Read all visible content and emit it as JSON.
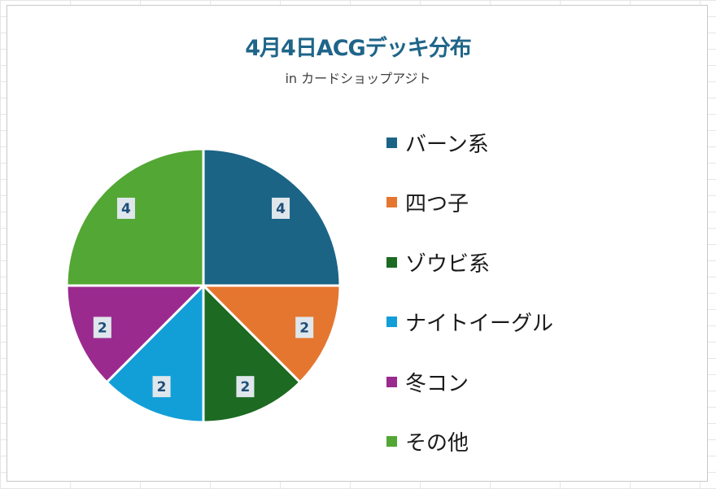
{
  "chart_data": {
    "type": "pie",
    "title": "4月4日ACGデッキ分布",
    "subtitle": "in カードショップアジト",
    "categories": [
      "バーン系",
      "四つ子",
      "ゾウビ系",
      "ナイトイーグル",
      "冬コン",
      "その他"
    ],
    "values": [
      4,
      2,
      2,
      2,
      2,
      4
    ],
    "colors": [
      "#1b6486",
      "#e57630",
      "#1d6a23",
      "#129fd8",
      "#9b2a8f",
      "#53a734"
    ],
    "data_labels": [
      "4",
      "2",
      "2",
      "2",
      "2",
      "4"
    ],
    "start_angle_deg": 0,
    "direction": "clockwise",
    "legend_position": "right"
  },
  "colors": {
    "title": "#1f6589",
    "data_label_text": "#1f4e79",
    "data_label_bg": "#dfe7ec"
  }
}
